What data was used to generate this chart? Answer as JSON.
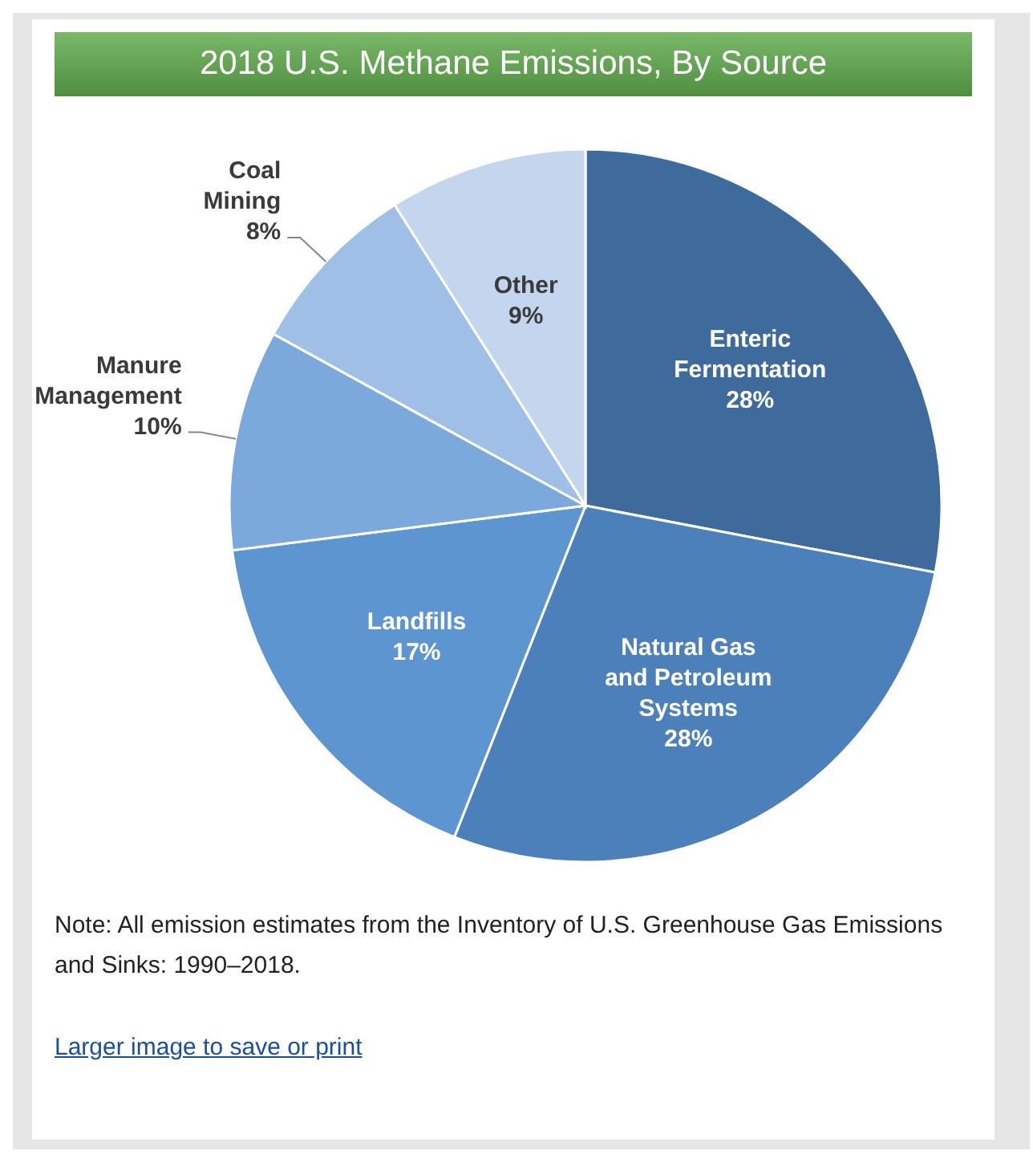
{
  "chart_data": {
    "type": "pie",
    "title": "2018 U.S. Methane Emissions, By Source",
    "categories": [
      "Enteric Fermentation",
      "Natural Gas and Petroleum Systems",
      "Landfills",
      "Manure Management",
      "Coal Mining",
      "Other"
    ],
    "values": [
      28,
      28,
      17,
      10,
      8,
      9
    ],
    "value_labels": [
      "28%",
      "28%",
      "17%",
      "10%",
      "8%",
      "9%"
    ],
    "colors": [
      "#3f6b9c",
      "#4b80ba",
      "#5d95d0",
      "#7ba9dc",
      "#9fbfe6",
      "#c4d5ee"
    ],
    "legend": false,
    "annotations": [
      "Note: All emission estimates from the Inventory of U.S. Greenhouse Gas Emissions and Sinks: 1990–2018.",
      "Larger image to save or print"
    ]
  }
}
